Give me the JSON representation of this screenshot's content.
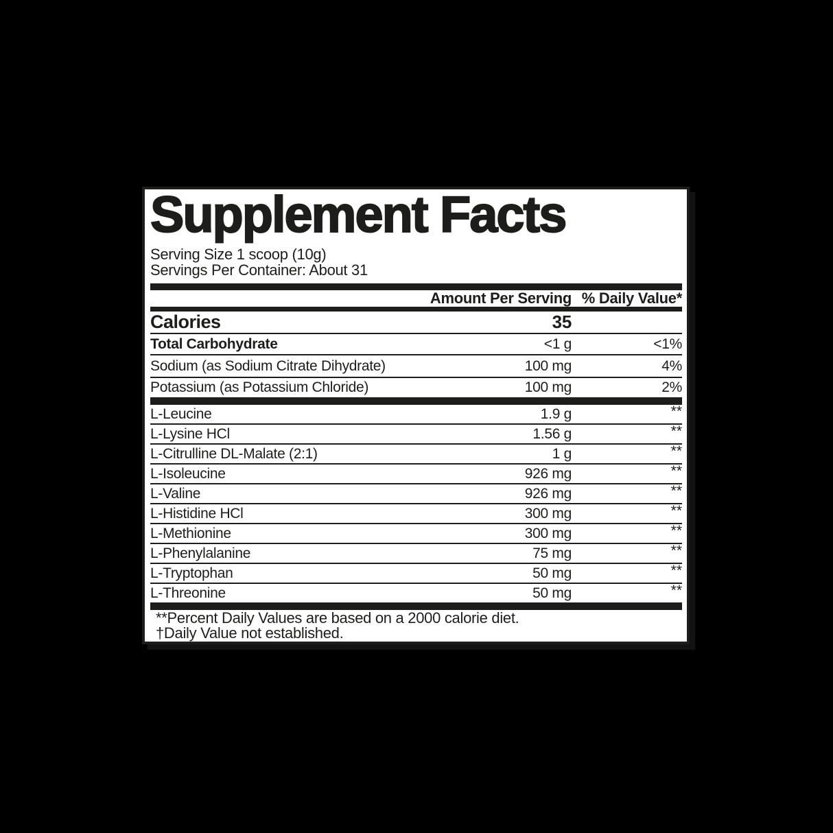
{
  "label": {
    "title": "Supplement Facts",
    "serving_size": "Serving Size 1 scoop (10g)",
    "servings_per_container": "Servings Per Container: About 31",
    "columns": {
      "amount": "Amount Per Serving",
      "dv": "% Daily Value*"
    },
    "calories": {
      "name": "Calories",
      "amount": "35"
    },
    "nutrients": [
      {
        "name": "Total Carbohydrate",
        "amount": "<1 g",
        "dv": "<1%"
      },
      {
        "name": "Sodium (as Sodium Citrate Dihydrate)",
        "amount": "100 mg",
        "dv": "4%"
      },
      {
        "name": "Potassium (as Potassium Chloride)",
        "amount": "100 mg",
        "dv": "2%"
      }
    ],
    "aminos": [
      {
        "name": "L-Leucine",
        "amount": "1.9 g",
        "dv": "**"
      },
      {
        "name": "L-Lysine HCl",
        "amount": "1.56 g",
        "dv": "**"
      },
      {
        "name": "L-Citrulline DL-Malate (2:1)",
        "amount": "1 g",
        "dv": "**"
      },
      {
        "name": "L-Isoleucine",
        "amount": "926 mg",
        "dv": "**"
      },
      {
        "name": "L-Valine",
        "amount": "926 mg",
        "dv": "**"
      },
      {
        "name": "L-Histidine HCl",
        "amount": "300 mg",
        "dv": "**"
      },
      {
        "name": "L-Methionine",
        "amount": "300 mg",
        "dv": "**"
      },
      {
        "name": "L-Phenylalanine",
        "amount": "75 mg",
        "dv": "**"
      },
      {
        "name": "L-Tryptophan",
        "amount": "50 mg",
        "dv": "**"
      },
      {
        "name": "L-Threonine",
        "amount": "50 mg",
        "dv": "**"
      }
    ],
    "footnotes": [
      "**Percent Daily Values are based on a 2000 calorie diet.",
      "†Daily Value not established."
    ],
    "colors": {
      "text": "#1d1d1b",
      "panel_bg": "#ffffff",
      "page_bg": "#000000"
    }
  }
}
